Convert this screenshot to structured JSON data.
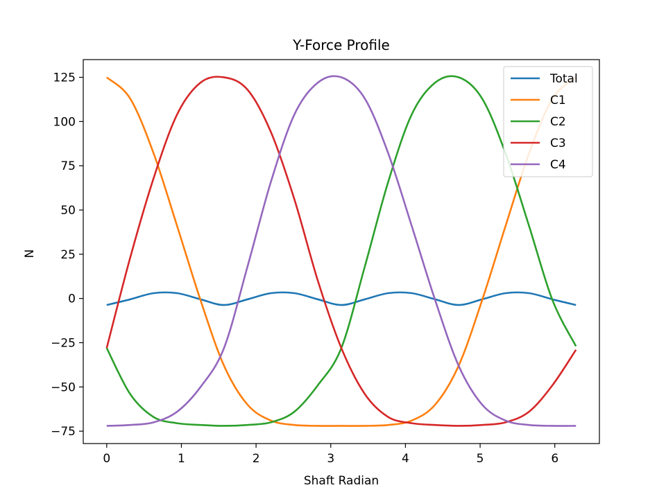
{
  "chart_data": {
    "type": "line",
    "title": "Y-Force Profile",
    "xlabel": "Shaft Radian",
    "ylabel": "N",
    "xlim": [
      -0.314,
      6.597
    ],
    "ylim": [
      -82,
      135
    ],
    "xticks": [
      0,
      1,
      2,
      3,
      4,
      5,
      6
    ],
    "xtick_labels": [
      "0",
      "1",
      "2",
      "3",
      "4",
      "5",
      "6"
    ],
    "yticks": [
      -75,
      -50,
      -25,
      0,
      25,
      50,
      75,
      100,
      125
    ],
    "ytick_labels": [
      "−75",
      "−50",
      "−25",
      "0",
      "25",
      "50",
      "75",
      "100",
      "125"
    ],
    "grid": false,
    "legend_position": "top-right",
    "x": [
      0,
      0.3142,
      0.6283,
      0.9425,
      1.2566,
      1.5708,
      1.885,
      2.1991,
      2.5133,
      2.8274,
      3.1416,
      3.4558,
      3.7699,
      4.0841,
      4.3982,
      4.7124,
      5.0265,
      5.3407,
      5.6549,
      5.969,
      6.2832
    ],
    "series": [
      {
        "name": "Total",
        "color": "#1f77b4",
        "values": [
          -3.7,
          -0.5,
          3.0,
          3.0,
          -0.5,
          -3.7,
          -0.5,
          3.0,
          3.0,
          -0.5,
          -3.7,
          -0.5,
          3.0,
          3.0,
          -0.5,
          -3.7,
          -0.5,
          3.0,
          3.0,
          -0.5,
          -3.7
        ]
      },
      {
        "name": "C1",
        "color": "#ff7f0e",
        "values": [
          125.0,
          113.0,
          82.0,
          41.0,
          -1.0,
          -38.0,
          -60.0,
          -69.0,
          -71.5,
          -72.0,
          -72.0,
          -72.0,
          -71.5,
          -69.0,
          -60.0,
          -38.0,
          -1.0,
          41.0,
          82.0,
          113.0,
          125.0
        ]
      },
      {
        "name": "C2",
        "color": "#2ca02c",
        "values": [
          -28.0,
          -54.0,
          -67.0,
          -70.5,
          -71.5,
          -72.0,
          -71.5,
          -70.0,
          -64.0,
          -49.0,
          -28.0,
          18.0,
          66.0,
          104.0,
          122.0,
          125.0,
          113.0,
          82.0,
          41.0,
          -1.0,
          -27.0
        ]
      },
      {
        "name": "C3",
        "color": "#d62728",
        "values": [
          -28.0,
          23.0,
          68.0,
          104.0,
          122.0,
          125.0,
          118.0,
          94.0,
          56.0,
          10.0,
          -28.0,
          -54.0,
          -67.0,
          -70.5,
          -71.5,
          -72.0,
          -71.5,
          -70.0,
          -64.0,
          -49.0,
          -29.0
        ]
      },
      {
        "name": "C4",
        "color": "#9467bd",
        "values": [
          -72.0,
          -71.5,
          -70.0,
          -64.0,
          -50.0,
          -28.0,
          18.0,
          66.0,
          104.0,
          122.0,
          125.0,
          113.0,
          82.0,
          41.0,
          -1.0,
          -38.0,
          -60.0,
          -69.0,
          -71.5,
          -72.0,
          -72.0
        ]
      }
    ]
  }
}
